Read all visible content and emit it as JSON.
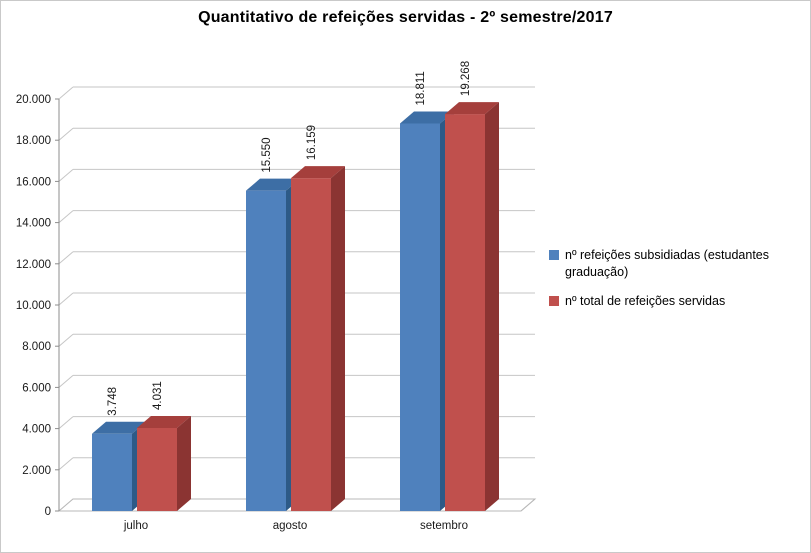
{
  "title": "Quantitativo de refeições servidas - 2º semestre/2017",
  "chart_data": {
    "type": "bar",
    "title": "Quantitativo de refeições servidas - 2º semestre/2017",
    "categories": [
      "julho",
      "agosto",
      "setembro"
    ],
    "series": [
      {
        "name": "nº refeições subsidiadas (estudantes graduação)",
        "values": [
          3748,
          15550,
          18811
        ],
        "labels": [
          "3.748",
          "15.550",
          "18.811"
        ],
        "color": "#4F81BD",
        "color_top": "#3D6EA5",
        "color_side": "#2D5A87"
      },
      {
        "name": "nº total de refeições servidas",
        "values": [
          4031,
          16159,
          19268
        ],
        "labels": [
          "4.031",
          "16.159",
          "19.268"
        ],
        "color": "#C0504D",
        "color_top": "#A53F3C",
        "color_side": "#8B3432"
      }
    ],
    "ylim": [
      0,
      20000
    ],
    "ytick_step": 2000,
    "ytick_labels": [
      "0",
      "2.000",
      "4.000",
      "6.000",
      "8.000",
      "10.000",
      "12.000",
      "14.000",
      "16.000",
      "18.000",
      "20.000"
    ],
    "xlabel": "",
    "ylabel": "",
    "grid": true,
    "legend_position": "right",
    "style": "3d-clustered-column"
  }
}
